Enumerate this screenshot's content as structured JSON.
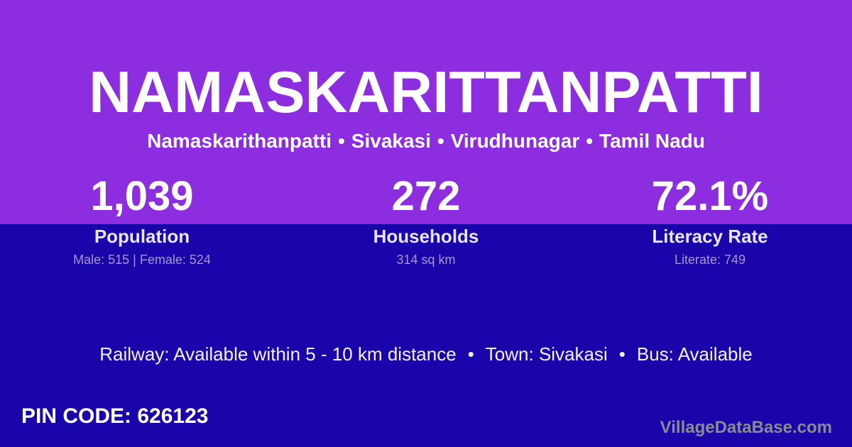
{
  "colors": {
    "purple": "#8C2DE0",
    "navy": "#1A05AA",
    "white": "#FFFFFF",
    "label": "#E9E4F6",
    "sublabel": "#A896D8",
    "transport": "#F4F1FA",
    "watermark": "#8B8B94"
  },
  "header": {
    "title": "NAMASKARITTANPATTI",
    "breadcrumb": {
      "separator": "•",
      "parts": [
        "Namaskarithanpatti",
        "Sivakasi",
        "Virudhunagar",
        "Tamil Nadu"
      ]
    }
  },
  "stats": [
    {
      "value": "1,039",
      "label": "Population",
      "sublabel": "Male: 515 | Female: 524"
    },
    {
      "value": "272",
      "label": "Households",
      "sublabel": "314 sq km"
    },
    {
      "value": "72.1%",
      "label": "Literacy Rate",
      "sublabel": "Literate: 749"
    }
  ],
  "transport": {
    "separator": "•",
    "items": [
      "Railway: Available within 5 - 10 km distance",
      "Town: Sivakasi",
      "Bus: Available"
    ]
  },
  "footer": {
    "pin_label": "PIN CODE:",
    "pin_value": "626123",
    "watermark": "VillageDataBase.com"
  }
}
